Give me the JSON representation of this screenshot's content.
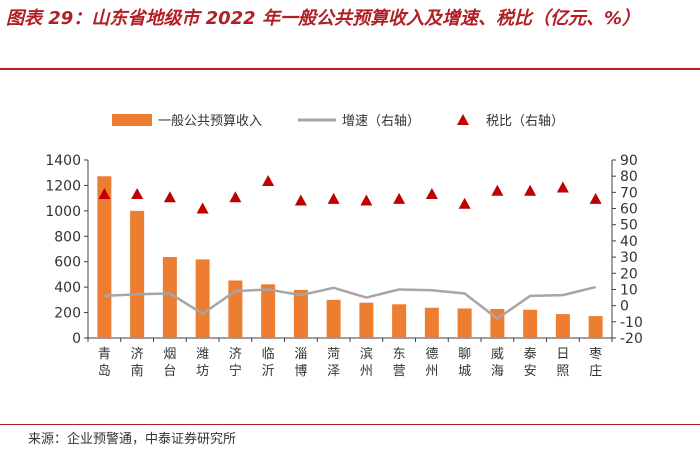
{
  "figure": {
    "title": "图表 29：山东省地级市 2022 年一般公共预算收入及增速、税比（亿元、%）",
    "source": "来源：企业预警通，中泰证券研究所"
  },
  "colors": {
    "bar": "#ED7D31",
    "line": "#A6A6A6",
    "marker": "#C00000",
    "accent": "#B01F24"
  },
  "chart_data": {
    "type": "bar",
    "categories": [
      "青岛",
      "济南",
      "烟台",
      "潍坊",
      "济宁",
      "临沂",
      "淄博",
      "菏泽",
      "滨州",
      "东营",
      "德州",
      "聊城",
      "威海",
      "泰安",
      "日照",
      "枣庄"
    ],
    "series": [
      {
        "name": "一般公共预算收入",
        "type": "bar",
        "axis": "left",
        "values": [
          1272,
          1000,
          637,
          618,
          452,
          422,
          378,
          300,
          278,
          265,
          238,
          232,
          228,
          222,
          188,
          172
        ]
      },
      {
        "name": "增速（右轴）",
        "type": "line",
        "axis": "right",
        "values": [
          6,
          7,
          7.5,
          -5,
          9,
          10,
          6.5,
          11,
          5,
          10,
          9.5,
          7.5,
          -8,
          6,
          6.5,
          11.5
        ]
      },
      {
        "name": "税比（右轴）",
        "type": "scatter",
        "axis": "right",
        "values": [
          69,
          69,
          67,
          60,
          67,
          77,
          65,
          66,
          65,
          66,
          69,
          63,
          71,
          71,
          73,
          66
        ]
      }
    ],
    "y_left": {
      "min": 0,
      "max": 1400,
      "ticks": [
        0,
        200,
        400,
        600,
        800,
        1000,
        1200,
        1400
      ]
    },
    "y_right": {
      "min": -20,
      "max": 90,
      "ticks": [
        -20,
        -10,
        0,
        10,
        20,
        30,
        40,
        50,
        60,
        70,
        80,
        90
      ]
    },
    "legend_position": "top"
  }
}
